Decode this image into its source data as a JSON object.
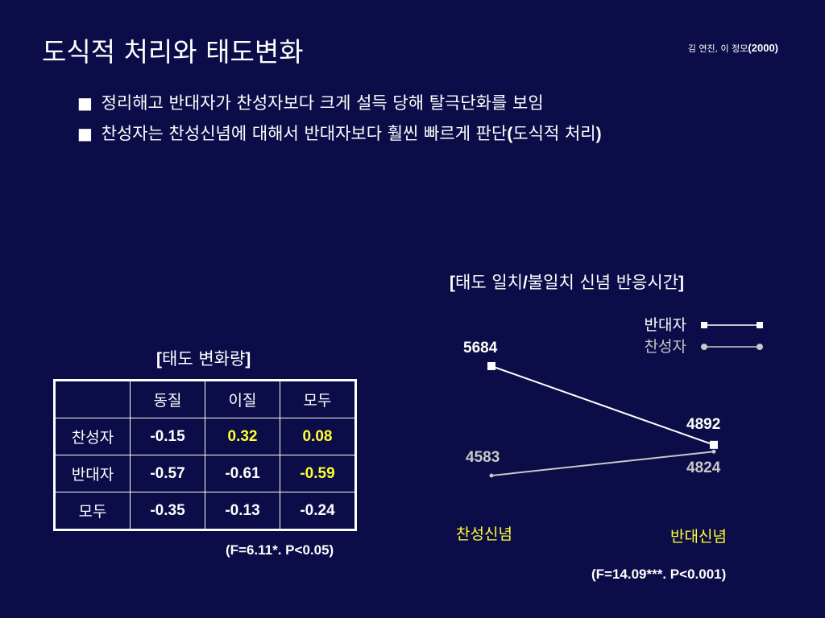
{
  "slide": {
    "title": "도식적 처리와 태도변화",
    "citation_authors": "김 연진, 이 정모",
    "citation_year": "(2000)",
    "bullets": [
      {
        "marker": "■",
        "text": "정리해고 반대자가 찬성자보다 크게 설득 당해 탈극단화를 보임"
      },
      {
        "marker": "■",
        "text_before": "찬성자는 찬성신념에 대해서 반대자보다 훨씬 빠르게 판단",
        "paren_open": "(",
        "paren_text": "도식적 처리",
        "paren_close": ")"
      }
    ]
  },
  "table": {
    "caption_open": "[",
    "caption_text": "태도 변화량",
    "caption_close": "]",
    "columns": [
      "",
      "동질",
      "이질",
      "모두"
    ],
    "rows": [
      {
        "label": "찬성자",
        "values": [
          "-0.15",
          "0.32",
          "0.08"
        ]
      },
      {
        "label": "반대자",
        "values": [
          "-0.57",
          "-0.61",
          "-0.59"
        ]
      },
      {
        "label": "모두",
        "values": [
          "-0.35",
          "-0.13",
          "-0.24"
        ]
      }
    ],
    "highlight_color": "#ffff33",
    "stat": "(F=6.11*. P<0.05)"
  },
  "chart_data": {
    "type": "line",
    "title_open": "[",
    "title_part1": "태도 일치",
    "title_slash": "/",
    "title_part2": "불일치 신념 반응시간",
    "title_close": "]",
    "categories": [
      "찬성신념",
      "반대신념"
    ],
    "series": [
      {
        "name": "반대자",
        "values": [
          5684,
          4892
        ],
        "color": "#ffffff",
        "marker": "square"
      },
      {
        "name": "찬성자",
        "values": [
          4583,
          4824
        ],
        "color": "#c8c8c8",
        "marker": "circle"
      }
    ],
    "value_labels": [
      "5684",
      "4892",
      "4583",
      "4824"
    ],
    "category_color": "#ffff33",
    "legend": "top-right",
    "stat": "(F=14.09***. P<0.001)"
  }
}
